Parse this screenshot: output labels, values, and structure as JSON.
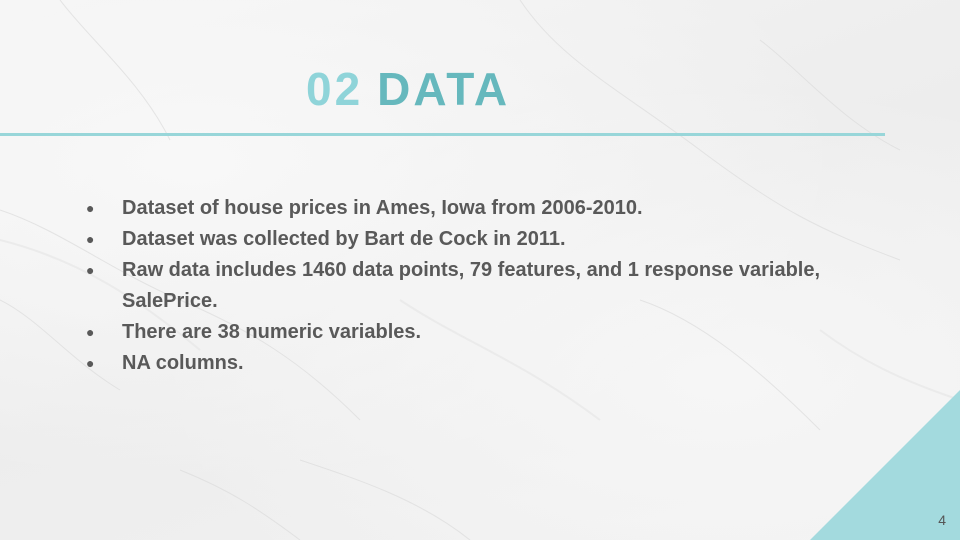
{
  "slide": {
    "title_number": "02",
    "title_word": "DATA",
    "bullets": [
      "Dataset of house prices in Ames, Iowa from 2006-2010.",
      "Dataset was collected by Bart de Cock in 2011.",
      "Raw data includes 1460 data points, 79 features, and 1 response variable, SalePrice.",
      "There are 38 numeric variables.",
      "NA columns."
    ],
    "bullet_glyph": "●",
    "page_number": "4"
  },
  "colors": {
    "title_number": "#8fd4d9",
    "title_word": "#66b8bd",
    "rule": "#98d6d9",
    "corner_triangle": "#a3dade",
    "body_text": "#595959"
  }
}
